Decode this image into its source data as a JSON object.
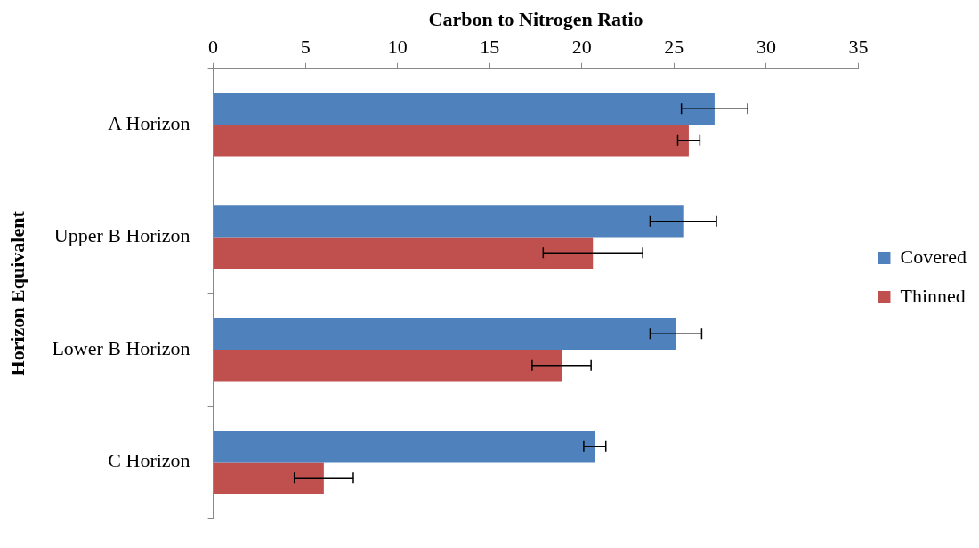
{
  "chart_data": {
    "type": "bar",
    "orientation": "horizontal",
    "xlabel": "Carbon to Nitrogen Ratio",
    "ylabel": "Horizon Equivalent",
    "categories": [
      "A Horizon",
      "Upper B Horizon",
      "Lower B Horizon",
      "C Horizon"
    ],
    "series": [
      {
        "name": "Covered",
        "color": "#4f81bd",
        "values": [
          27.2,
          25.5,
          25.1,
          20.7
        ],
        "errors": [
          1.8,
          1.8,
          1.4,
          0.6
        ]
      },
      {
        "name": "Thinned",
        "color": "#c0504d",
        "values": [
          25.8,
          20.6,
          18.9,
          6.0
        ],
        "errors": [
          0.6,
          2.7,
          1.6,
          1.6
        ]
      }
    ],
    "xlim": [
      0,
      35
    ],
    "xticks": [
      0,
      5,
      10,
      15,
      20,
      25,
      30,
      35
    ],
    "grid": false,
    "legend": "right"
  }
}
